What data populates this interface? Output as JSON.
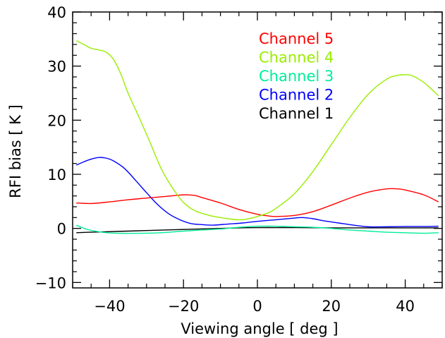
{
  "chart_data": {
    "type": "line",
    "xlabel": "Viewing angle [ deg ]",
    "ylabel": "RFI bias [ K ]",
    "xlim": [
      -50,
      50
    ],
    "ylim": [
      -11,
      40
    ],
    "xticks": [
      -40,
      -20,
      0,
      20,
      40
    ],
    "yticks": [
      -10,
      0,
      10,
      20,
      30,
      40
    ],
    "xtick_labels": [
      "−40",
      "−20",
      "0",
      "20",
      "40"
    ],
    "ytick_labels": [
      "−10",
      "0",
      "10",
      "20",
      "30",
      "40"
    ],
    "legend_position": "top-right",
    "legend_order": [
      "Channel 5",
      "Channel 4",
      "Channel 3",
      "Channel 2",
      "Channel 1"
    ],
    "series": [
      {
        "name": "Channel 5",
        "color": "#ff0000",
        "points": [
          [
            -49,
            4.7
          ],
          [
            -45,
            4.6
          ],
          [
            -40,
            4.9
          ],
          [
            -35,
            5.3
          ],
          [
            -30,
            5.6
          ],
          [
            -25,
            5.9
          ],
          [
            -20,
            6.2
          ],
          [
            -17,
            6.1
          ],
          [
            -15,
            5.7
          ],
          [
            -10,
            4.7
          ],
          [
            -5,
            3.5
          ],
          [
            0,
            2.6
          ],
          [
            3,
            2.3
          ],
          [
            5,
            2.2
          ],
          [
            10,
            2.4
          ],
          [
            15,
            3.1
          ],
          [
            20,
            4.3
          ],
          [
            25,
            5.6
          ],
          [
            30,
            6.7
          ],
          [
            35,
            7.3
          ],
          [
            38,
            7.3
          ],
          [
            40,
            7.1
          ],
          [
            45,
            6.2
          ],
          [
            49,
            4.9
          ]
        ]
      },
      {
        "name": "Channel 4",
        "color": "#99ee00",
        "points": [
          [
            -49,
            34.7
          ],
          [
            -47,
            34.0
          ],
          [
            -45,
            33.3
          ],
          [
            -43,
            33.0
          ],
          [
            -41,
            32.6
          ],
          [
            -39,
            31.3
          ],
          [
            -37,
            28.6
          ],
          [
            -35,
            25.0
          ],
          [
            -32,
            20.5
          ],
          [
            -29,
            15.8
          ],
          [
            -26,
            11.0
          ],
          [
            -23,
            7.5
          ],
          [
            -20,
            4.8
          ],
          [
            -17,
            3.3
          ],
          [
            -13,
            2.4
          ],
          [
            -10,
            2.0
          ],
          [
            -7,
            1.7
          ],
          [
            -5,
            1.6
          ],
          [
            -3,
            1.7
          ],
          [
            0,
            2.2
          ],
          [
            3,
            2.9
          ],
          [
            5,
            3.7
          ],
          [
            10,
            6.4
          ],
          [
            15,
            10.5
          ],
          [
            20,
            15.5
          ],
          [
            25,
            20.5
          ],
          [
            30,
            24.8
          ],
          [
            35,
            27.6
          ],
          [
            38,
            28.3
          ],
          [
            40,
            28.4
          ],
          [
            42,
            28.2
          ],
          [
            45,
            27.0
          ],
          [
            47,
            25.8
          ],
          [
            49,
            24.5
          ]
        ]
      },
      {
        "name": "Channel 3",
        "color": "#00ee99",
        "points": [
          [
            -49,
            0.6
          ],
          [
            -46,
            -0.2
          ],
          [
            -42,
            -0.7
          ],
          [
            -38,
            -0.9
          ],
          [
            -32,
            -0.9
          ],
          [
            -26,
            -0.8
          ],
          [
            -20,
            -0.5
          ],
          [
            -15,
            -0.3
          ],
          [
            -10,
            -0.1
          ],
          [
            -5,
            0.2
          ],
          [
            0,
            0.4
          ],
          [
            5,
            0.4
          ],
          [
            10,
            0.3
          ],
          [
            15,
            0.2
          ],
          [
            20,
            0.0
          ],
          [
            25,
            -0.3
          ],
          [
            30,
            -0.5
          ],
          [
            35,
            -0.7
          ],
          [
            40,
            -0.8
          ],
          [
            45,
            -0.9
          ],
          [
            49,
            -0.8
          ]
        ]
      },
      {
        "name": "Channel 2",
        "color": "#0000ff",
        "points": [
          [
            -49,
            11.7
          ],
          [
            -47,
            12.3
          ],
          [
            -45,
            12.8
          ],
          [
            -43,
            13.1
          ],
          [
            -41,
            13.0
          ],
          [
            -39,
            12.5
          ],
          [
            -36,
            11.1
          ],
          [
            -33,
            8.9
          ],
          [
            -30,
            6.6
          ],
          [
            -27,
            4.4
          ],
          [
            -24,
            2.7
          ],
          [
            -21,
            1.6
          ],
          [
            -18,
            0.9
          ],
          [
            -15,
            0.7
          ],
          [
            -12,
            0.6
          ],
          [
            -8,
            0.8
          ],
          [
            -4,
            1.0
          ],
          [
            0,
            1.3
          ],
          [
            5,
            1.6
          ],
          [
            10,
            1.9
          ],
          [
            12,
            2.0
          ],
          [
            15,
            1.8
          ],
          [
            18,
            1.4
          ],
          [
            22,
            1.0
          ],
          [
            26,
            0.6
          ],
          [
            30,
            0.3
          ],
          [
            35,
            0.3
          ],
          [
            40,
            0.35
          ],
          [
            45,
            0.35
          ],
          [
            49,
            0.4
          ]
        ]
      },
      {
        "name": "Channel 1",
        "color": "#000000",
        "points": [
          [
            -49,
            -0.8
          ],
          [
            -45,
            -0.7
          ],
          [
            -40,
            -0.6
          ],
          [
            -35,
            -0.5
          ],
          [
            -30,
            -0.4
          ],
          [
            -25,
            -0.3
          ],
          [
            -20,
            -0.2
          ],
          [
            -15,
            -0.1
          ],
          [
            -10,
            0.0
          ],
          [
            -5,
            0.1
          ],
          [
            0,
            0.15
          ],
          [
            5,
            0.15
          ],
          [
            10,
            0.15
          ],
          [
            20,
            0.1
          ],
          [
            30,
            0.1
          ],
          [
            40,
            0.1
          ],
          [
            49,
            0.1
          ]
        ]
      }
    ]
  }
}
